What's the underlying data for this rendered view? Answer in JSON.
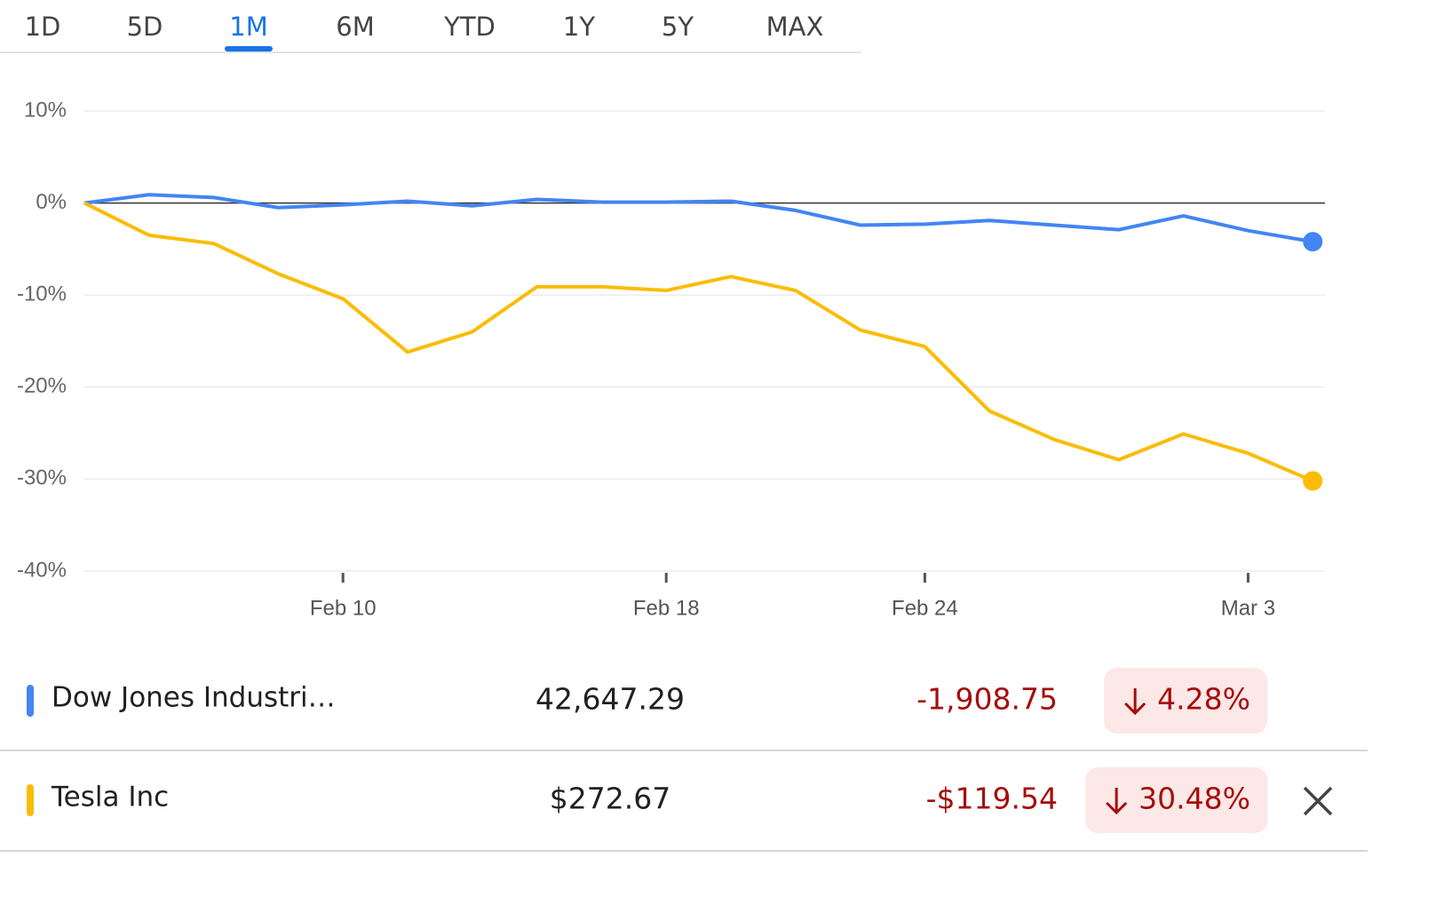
{
  "tabs": {
    "items": [
      "1D",
      "5D",
      "1M",
      "6M",
      "YTD",
      "1Y",
      "5Y",
      "MAX"
    ],
    "selected": "1M"
  },
  "chart_data": {
    "type": "line",
    "categories": [
      null,
      null,
      null,
      null,
      "Feb 10",
      null,
      null,
      null,
      null,
      "Feb 18",
      null,
      null,
      null,
      "Feb 24",
      null,
      null,
      null,
      null,
      "Mar 3",
      null
    ],
    "series": [
      {
        "name": "Dow Jones Industri…",
        "color": "#4285f4",
        "values": [
          0,
          0.9,
          0.6,
          -0.5,
          -0.2,
          0.2,
          -0.3,
          0.4,
          0.1,
          0.1,
          0.2,
          -0.8,
          -2.4,
          -2.3,
          -1.9,
          -2.4,
          -2.9,
          -1.4,
          -3.0,
          -4.2
        ]
      },
      {
        "name": "Tesla Inc",
        "color": "#fbbc04",
        "values": [
          0,
          -3.5,
          -4.4,
          -7.7,
          -10.4,
          -16.2,
          -14.0,
          -9.1,
          -9.1,
          -9.5,
          -8.0,
          -9.5,
          -13.8,
          -15.6,
          -22.6,
          -25.7,
          -27.9,
          -25.1,
          -27.2,
          -30.2
        ]
      }
    ],
    "ylim": [
      -40,
      10
    ],
    "yticks": [
      {
        "value": 10,
        "label": "10%"
      },
      {
        "value": 0,
        "label": "0%"
      },
      {
        "value": -10,
        "label": "-10%"
      },
      {
        "value": -20,
        "label": "-20%"
      },
      {
        "value": -30,
        "label": "-30%"
      },
      {
        "value": -40,
        "label": "-40%"
      }
    ],
    "grid": true
  },
  "rows": [
    {
      "price": "42,647.29",
      "change": "-1,908.75",
      "change_percent": "4.28%"
    },
    {
      "price": "$272.67",
      "change": "-$119.54",
      "change_percent": "30.48%"
    }
  ]
}
